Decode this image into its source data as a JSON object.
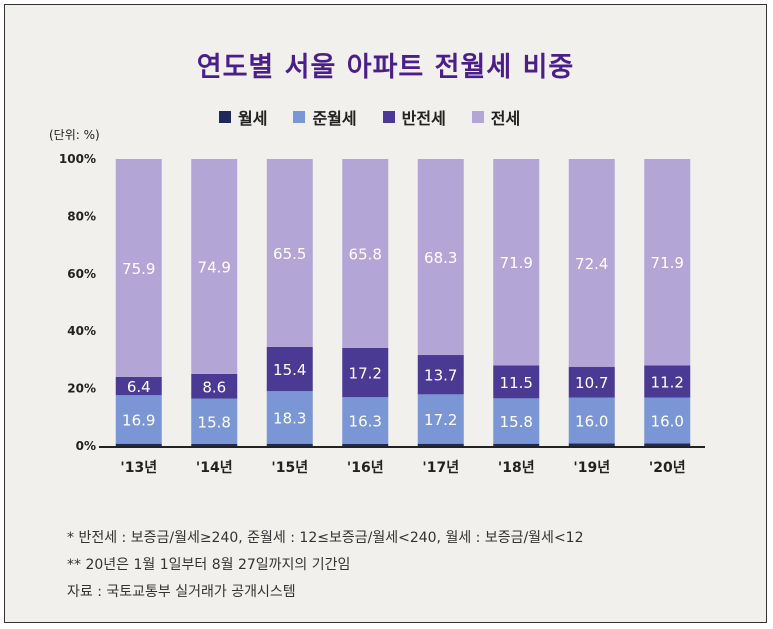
{
  "title": "연도별 서울 아파트 전월세 비중",
  "unit_label": "(단위: %)",
  "colors": {
    "wolse": "#1f2a5a",
    "junwolse": "#7b96d4",
    "banjeonse": "#4a3a93",
    "jeonse": "#b3a5d6",
    "axis": "#222222"
  },
  "chart_data": {
    "type": "bar",
    "stacked": true,
    "categories": [
      "'13년",
      "'14년",
      "'15년",
      "'16년",
      "'17년",
      "'18년",
      "'19년",
      "'20년"
    ],
    "series": [
      {
        "name": "월세",
        "values": [
          0.8,
          0.7,
          0.8,
          0.7,
          0.8,
          0.8,
          0.9,
          0.9
        ],
        "labels": [
          "",
          "",
          "",
          "",
          "",
          "",
          "",
          ""
        ]
      },
      {
        "name": "준월세",
        "values": [
          16.9,
          15.8,
          18.3,
          16.3,
          17.2,
          15.8,
          16.0,
          16.0
        ],
        "labels": [
          "16.9",
          "15.8",
          "18.3",
          "16.3",
          "17.2",
          "15.8",
          "16.0",
          "16.0"
        ]
      },
      {
        "name": "반전세",
        "values": [
          6.4,
          8.6,
          15.4,
          17.2,
          13.7,
          11.5,
          10.7,
          11.2
        ],
        "labels": [
          "6.4",
          "8.6",
          "15.4",
          "17.2",
          "13.7",
          "11.5",
          "10.7",
          "11.2"
        ]
      },
      {
        "name": "전세",
        "values": [
          75.9,
          74.9,
          65.5,
          65.8,
          68.3,
          71.9,
          72.4,
          71.9
        ],
        "labels": [
          "75.9",
          "74.9",
          "65.5",
          "65.8",
          "68.3",
          "71.9",
          "72.4",
          "71.9"
        ]
      }
    ],
    "ylim": [
      0,
      100
    ],
    "y_ticks": [
      "0%",
      "20%",
      "40%",
      "60%",
      "80%",
      "100%"
    ],
    "legend_position": "top"
  },
  "notes": [
    "* 반전세 : 보증금/월세≥240, 준월세 : 12≤보증금/월세<240, 월세 : 보증금/월세<12",
    "** 20년은 1월 1일부터 8월 27일까지의 기간임",
    "자료 : 국토교통부 실거래가 공개시스템"
  ]
}
